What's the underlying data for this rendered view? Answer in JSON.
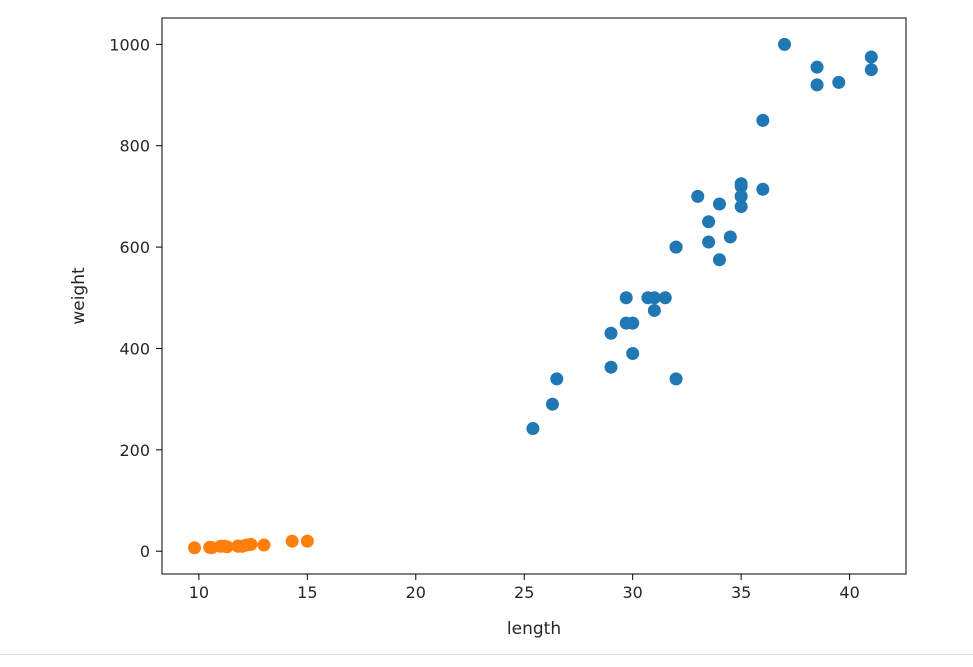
{
  "chart_data": {
    "type": "scatter",
    "xlabel": "length",
    "ylabel": "weight",
    "xlim": [
      8.3,
      42.6
    ],
    "ylim": [
      -45,
      1052
    ],
    "xticks": [
      10,
      15,
      20,
      25,
      30,
      35,
      40
    ],
    "yticks": [
      0,
      200,
      400,
      600,
      800,
      1000
    ],
    "grid": false,
    "series": [
      {
        "color": "#1f77b4",
        "points": [
          [
            25.4,
            242
          ],
          [
            26.3,
            290
          ],
          [
            26.5,
            340
          ],
          [
            29.0,
            363
          ],
          [
            29.0,
            430
          ],
          [
            29.7,
            450
          ],
          [
            29.7,
            500
          ],
          [
            30.0,
            390
          ],
          [
            30.0,
            450
          ],
          [
            30.7,
            500
          ],
          [
            31.0,
            475
          ],
          [
            31.0,
            500
          ],
          [
            31.5,
            500
          ],
          [
            32.0,
            340
          ],
          [
            32.0,
            600
          ],
          [
            32.0,
            600
          ],
          [
            33.0,
            700
          ],
          [
            33.5,
            610
          ],
          [
            33.5,
            650
          ],
          [
            34.0,
            575
          ],
          [
            34.0,
            685
          ],
          [
            34.5,
            620
          ],
          [
            35.0,
            680
          ],
          [
            35.0,
            700
          ],
          [
            35.0,
            725
          ],
          [
            35.0,
            720
          ],
          [
            36.0,
            714
          ],
          [
            36.0,
            850
          ],
          [
            37.0,
            1000
          ],
          [
            38.5,
            920
          ],
          [
            38.5,
            955
          ],
          [
            39.5,
            925
          ],
          [
            41.0,
            975
          ],
          [
            41.0,
            950
          ]
        ]
      },
      {
        "color": "#ff7f0e",
        "points": [
          [
            9.8,
            6.7
          ],
          [
            10.5,
            7.5
          ],
          [
            10.6,
            7.0
          ],
          [
            11.0,
            9.7
          ],
          [
            11.2,
            9.8
          ],
          [
            11.3,
            8.7
          ],
          [
            11.8,
            10.0
          ],
          [
            11.8,
            9.9
          ],
          [
            12.0,
            9.8
          ],
          [
            12.2,
            12.2
          ],
          [
            12.4,
            13.4
          ],
          [
            13.0,
            12.2
          ],
          [
            14.3,
            19.7
          ],
          [
            15.0,
            19.9
          ]
        ]
      }
    ]
  }
}
